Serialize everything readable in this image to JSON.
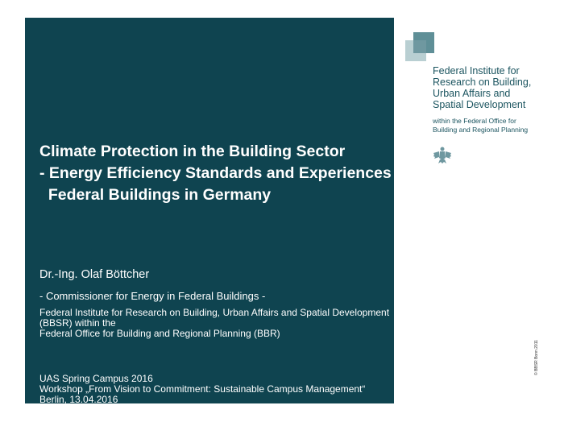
{
  "slide": {
    "title_line1": "Climate Protection in the Building Sector",
    "title_line2": "- Energy Efficiency Standards and Experiences in",
    "title_line3": "  Federal Buildings in Germany",
    "author": "Dr.-Ing. Olaf Böttcher",
    "role": "- Commissioner for Energy in Federal Buildings -",
    "institution_line1": "Federal Institute for Research on Building, Urban Affairs and Spatial Development",
    "institution_line2": "(BBSR) within the",
    "institution_line3": "Federal Office for Building and Regional Planning (BBR)",
    "event_line1": "UAS Spring Campus 2016",
    "event_line2": "Workshop „From Vision to Commitment: Sustainable Campus Management“",
    "event_line3": "Berlin, 13.04.2016"
  },
  "logo": {
    "org_line1": "Federal Institute for",
    "org_line2": "Research on Building,",
    "org_line3": "Urban Affairs and",
    "org_line4": "Spatial Development",
    "sub_line1": "within the Federal Office for",
    "sub_line2": "Building and Regional Planning",
    "emblem": "federal-eagle-icon"
  },
  "copyright": "© BBSR Bonn 2011",
  "colors": {
    "panel": "#0f4450",
    "brand": "#1c5560"
  }
}
